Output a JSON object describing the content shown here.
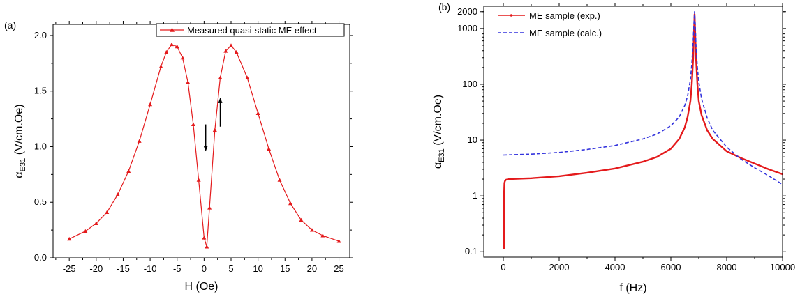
{
  "panels": [
    {
      "label": "(a)"
    },
    {
      "label": "(b)"
    }
  ],
  "chart_data": [
    {
      "type": "line",
      "xlabel": "H (Oe)",
      "ylabel_prefix": "α",
      "ylabel_subscript": "E31",
      "ylabel_suffix": " (V/cm.Oe)",
      "xlim": [
        -28,
        27
      ],
      "ylim": [
        0,
        2.1
      ],
      "x_ticks": [
        -25,
        -20,
        -15,
        -10,
        -5,
        0,
        5,
        10,
        15,
        20,
        25
      ],
      "y_ticks": [
        0.0,
        0.5,
        1.0,
        1.5,
        2.0
      ],
      "y_tick_labels": [
        "0.0",
        "0.5",
        "1.0",
        "1.5",
        "2.0"
      ],
      "grid": false,
      "legend_position": "top-right",
      "marker": "triangle",
      "series": [
        {
          "name": "Measured quasi-static ME effect",
          "color": "#e41a1c",
          "x": [
            -25,
            -22,
            -20,
            -18,
            -16,
            -14,
            -12,
            -10,
            -8,
            -7,
            -6,
            -5,
            -4,
            -3,
            -2,
            -1,
            0,
            0.5,
            1,
            2,
            3,
            4,
            5,
            6,
            8,
            10,
            12,
            14,
            16,
            18,
            20,
            22,
            25
          ],
          "y": [
            0.17,
            0.24,
            0.31,
            0.41,
            0.57,
            0.78,
            1.05,
            1.38,
            1.72,
            1.85,
            1.92,
            1.9,
            1.8,
            1.58,
            1.2,
            0.7,
            0.18,
            0.1,
            0.45,
            1.15,
            1.62,
            1.86,
            1.91,
            1.85,
            1.62,
            1.3,
            0.98,
            0.7,
            0.49,
            0.34,
            0.25,
            0.2,
            0.15
          ]
        }
      ],
      "annotations": [
        {
          "type": "arrow",
          "direction": "down",
          "at_x": 0.3,
          "from_y": 1.2,
          "to_y": 0.97
        },
        {
          "type": "arrow",
          "direction": "up",
          "at_x": 3.0,
          "from_y": 1.18,
          "to_y": 1.43
        }
      ]
    },
    {
      "type": "line",
      "xlabel": "f (Hz)",
      "ylabel_prefix": "α",
      "ylabel_subscript": "E31",
      "ylabel_suffix": " (V/cm.Oe)",
      "xlim": [
        -700,
        10000
      ],
      "ylim": [
        0.08,
        2500
      ],
      "y_scale": "log",
      "x_ticks": [
        0,
        2000,
        4000,
        6000,
        8000,
        10000
      ],
      "y_ticks": [
        0.1,
        1,
        10,
        100,
        1000,
        2000
      ],
      "y_tick_labels": [
        "0.1",
        "1",
        "10",
        "100",
        "1000",
        "2000"
      ],
      "grid": false,
      "legend_position": "top-left",
      "series": [
        {
          "name": "ME sample (exp.)",
          "color": "#e41a1c",
          "x": [
            20,
            25,
            30,
            40,
            60,
            100,
            200,
            500,
            1000,
            2000,
            3000,
            4000,
            5000,
            5500,
            6000,
            6300,
            6500,
            6600,
            6700,
            6750,
            6800,
            6830,
            6850,
            6870,
            6900,
            6950,
            7000,
            7100,
            7300,
            7500,
            8000,
            8500,
            9000,
            9500,
            10000
          ],
          "y": [
            0.11,
            0.5,
            1.2,
            1.7,
            1.85,
            1.95,
            2.0,
            2.03,
            2.07,
            2.25,
            2.6,
            3.1,
            4.1,
            5.0,
            7.0,
            10.5,
            17,
            26,
            50,
            100,
            300,
            900,
            1800,
            900,
            300,
            100,
            50,
            28,
            15,
            10.5,
            6.3,
            4.8,
            3.8,
            3.0,
            2.45
          ]
        },
        {
          "name": "ME sample (calc.)",
          "color": "#3333dd",
          "x": [
            0,
            1000,
            2000,
            3000,
            4000,
            5000,
            5500,
            6000,
            6300,
            6500,
            6600,
            6700,
            6750,
            6800,
            6830,
            6850,
            6870,
            6900,
            6950,
            7000,
            7100,
            7300,
            7500,
            8000,
            8500,
            9000,
            9500,
            10000
          ],
          "y": [
            5.4,
            5.6,
            6.0,
            6.8,
            8.0,
            10.5,
            12.8,
            18,
            26,
            42,
            62,
            120,
            230,
            600,
            1300,
            2000,
            1300,
            500,
            200,
            110,
            55,
            25,
            15,
            7.5,
            4.6,
            3.2,
            2.3,
            1.6
          ]
        }
      ]
    }
  ]
}
